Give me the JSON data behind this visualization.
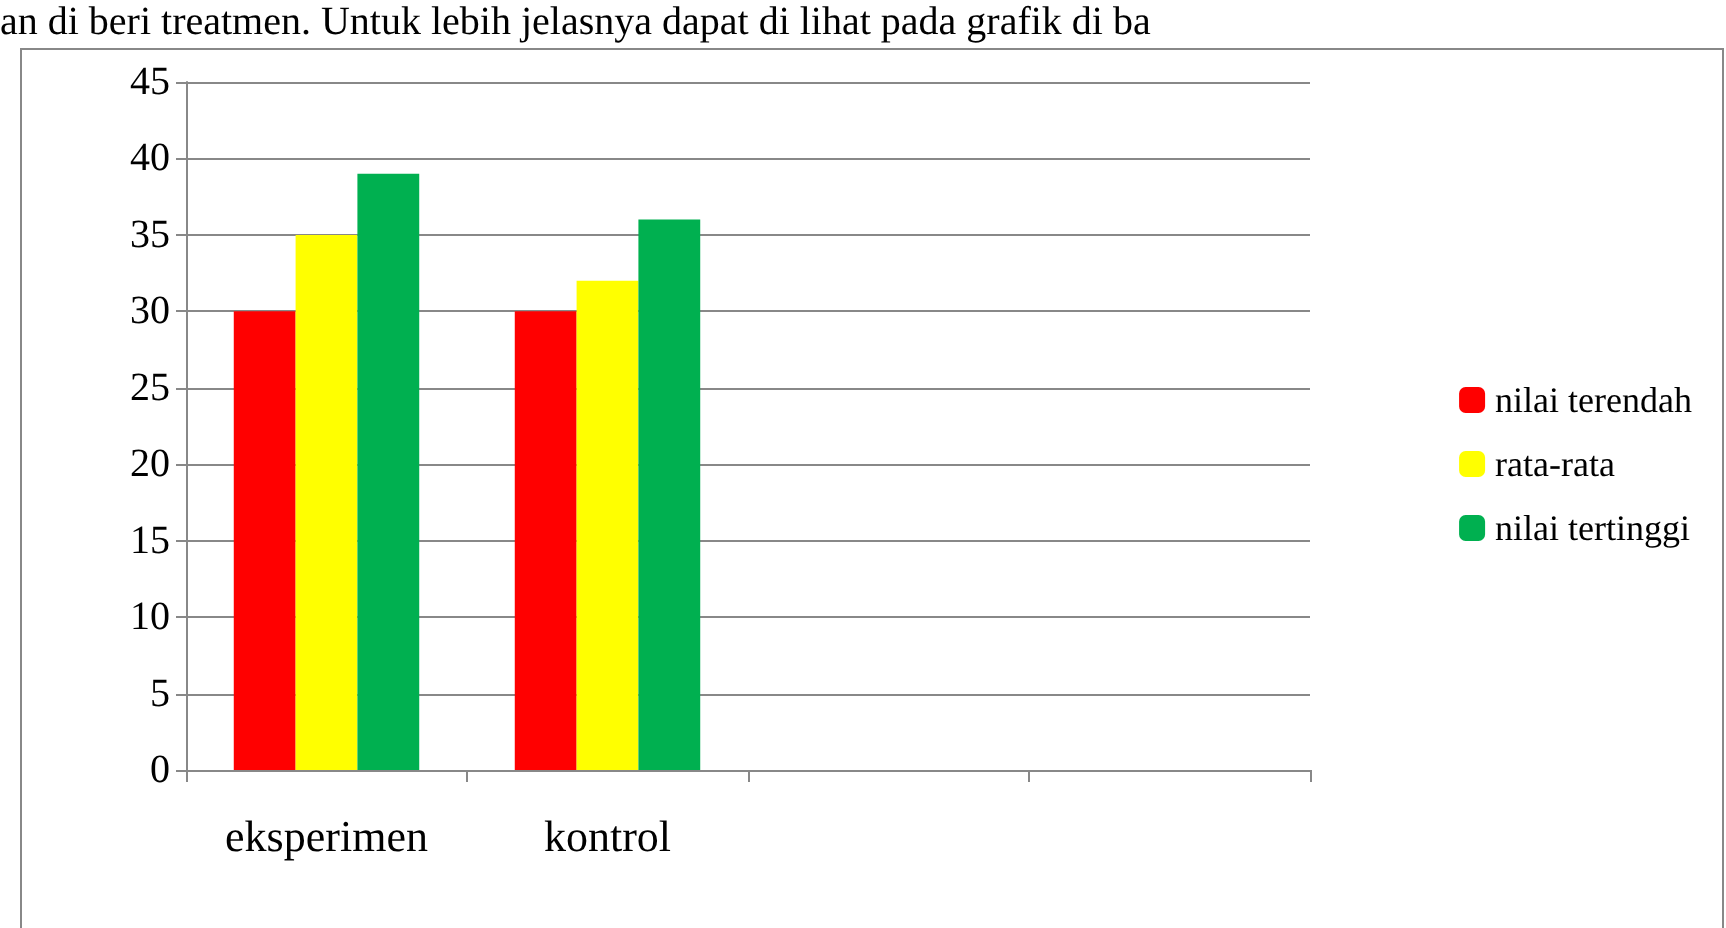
{
  "chart_data": {
    "type": "bar",
    "annotations": [
      "an di beri treatmen. Untuk lebih jelasnya dapat di lihat pada grafik di ba"
    ],
    "categories": [
      "eksperimen",
      "kontrol",
      null,
      null
    ],
    "series": [
      {
        "name": "nilai terendah",
        "color": "#ff0000",
        "values": [
          30,
          30,
          null,
          null
        ]
      },
      {
        "name": "rata-rata",
        "color": "#ffff00",
        "values": [
          35,
          32,
          null,
          null
        ]
      },
      {
        "name": "nilai tertinggi",
        "color": "#00b050",
        "values": [
          39,
          36,
          null,
          null
        ]
      }
    ],
    "ylim": [
      0,
      45
    ],
    "yticks": [
      0,
      5,
      10,
      15,
      20,
      25,
      30,
      35,
      40,
      45
    ],
    "grid": "y",
    "legend": "right"
  }
}
